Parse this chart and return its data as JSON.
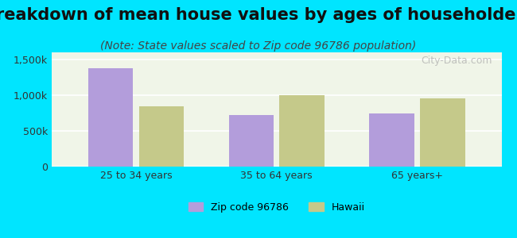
{
  "title": "Breakdown of mean house values by ages of householders",
  "subtitle": "(Note: State values scaled to Zip code 96786 population)",
  "categories": [
    "25 to 34 years",
    "35 to 64 years",
    "65 years+"
  ],
  "zip_values": [
    1380000,
    720000,
    740000
  ],
  "hawaii_values": [
    840000,
    1000000,
    960000
  ],
  "zip_color": "#b39ddb",
  "hawaii_color": "#c5c98a",
  "background_outer": "#00e5ff",
  "background_inner": "#f0f5e8",
  "ylim": [
    0,
    1600000
  ],
  "yticks": [
    0,
    500000,
    1000000,
    1500000
  ],
  "ytick_labels": [
    "0",
    "500k",
    "1,000k",
    "1,500k"
  ],
  "zip_label": "Zip code 96786",
  "hawaii_label": "Hawaii",
  "title_fontsize": 15,
  "subtitle_fontsize": 10,
  "watermark": "City-Data.com"
}
